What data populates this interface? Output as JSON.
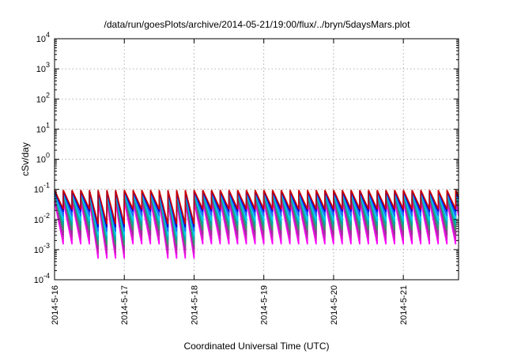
{
  "chart_data": {
    "type": "line",
    "title": "/data/run/goesPlots/archive/2014-05-21/19:00/flux/../bryn/5daysMars.plot",
    "xlabel": "Coordinated Universal Time (UTC)",
    "ylabel": "cSv/day",
    "yscale": "log",
    "ylim": [
      0.0001,
      10000
    ],
    "y_ticks": [
      {
        "value": 0.0001,
        "base": "10",
        "exp": "-4"
      },
      {
        "value": 0.001,
        "base": "10",
        "exp": "-3"
      },
      {
        "value": 0.01,
        "base": "10",
        "exp": "-2"
      },
      {
        "value": 0.1,
        "base": "10",
        "exp": "-1"
      },
      {
        "value": 1,
        "base": "10",
        "exp": "0"
      },
      {
        "value": 10,
        "base": "10",
        "exp": "1"
      },
      {
        "value": 100,
        "base": "10",
        "exp": "2"
      },
      {
        "value": 1000,
        "base": "10",
        "exp": "3"
      },
      {
        "value": 10000,
        "base": "10",
        "exp": "4"
      }
    ],
    "xlim": [
      "2014-05-16T00:00",
      "2014-05-21T19:00"
    ],
    "x_ticks": [
      "2014-5-16",
      "2014-5-17",
      "2014-5-18",
      "2014-5-19",
      "2014-5-20",
      "2014-5-21"
    ],
    "grid": true,
    "cycle_hours": 3,
    "series": [
      {
        "color": "#ff00ff",
        "peak": 0.04,
        "trough": 0.0015,
        "dip_trough": 0.0005
      },
      {
        "color": "#cc22bb",
        "peak": 0.05,
        "trough": 0.0022,
        "dip_trough": 0.0007
      },
      {
        "color": "#993399",
        "peak": 0.06,
        "trough": 0.003,
        "dip_trough": 0.001
      },
      {
        "color": "#339966",
        "peak": 0.07,
        "trough": 0.0045,
        "dip_trough": 0.0014
      },
      {
        "color": "#00aaaa",
        "peak": 0.075,
        "trough": 0.0065,
        "dip_trough": 0.002
      },
      {
        "color": "#00ccee",
        "peak": 0.08,
        "trough": 0.009,
        "dip_trough": 0.0028
      },
      {
        "color": "#2266ff",
        "peak": 0.085,
        "trough": 0.013,
        "dip_trough": 0.004
      },
      {
        "color": "#0000cc",
        "peak": 0.09,
        "trough": 0.018,
        "dip_trough": 0.0055
      },
      {
        "color": "#cc0000",
        "peak": 0.095,
        "trough": 0.022,
        "dip_trough": 0.007
      }
    ],
    "dips": [
      "2014-05-17T00:00",
      "2014-05-18T00:00"
    ]
  }
}
